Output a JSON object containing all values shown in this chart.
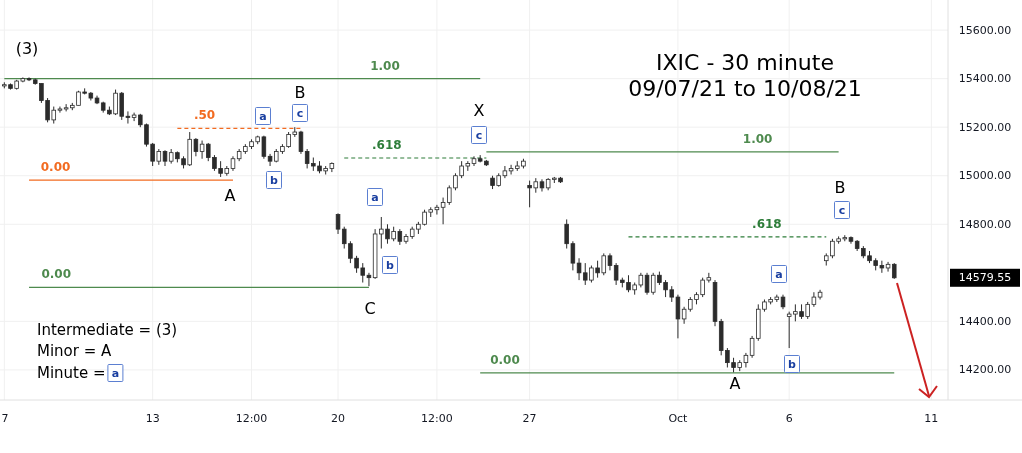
{
  "chart_data": {
    "type": "candlestick",
    "title": "IXIC - 30 minute",
    "subtitle": "09/07/21 to 10/08/21",
    "color": "#2b2b2b",
    "categories": [
      "7",
      null,
      null,
      null,
      null,
      null,
      null,
      null,
      null,
      null,
      null,
      null,
      null,
      null,
      null,
      null,
      null,
      null,
      null,
      null,
      null,
      null,
      null,
      null,
      "13",
      null,
      null,
      null,
      null,
      null,
      null,
      null,
      null,
      null,
      null,
      null,
      null,
      null,
      null,
      null,
      "12:00",
      null,
      null,
      null,
      null,
      null,
      null,
      null,
      null,
      null,
      null,
      null,
      null,
      null,
      "20",
      null,
      null,
      null,
      null,
      null,
      null,
      null,
      null,
      null,
      null,
      null,
      null,
      null,
      null,
      null,
      "12:00",
      null,
      null,
      null,
      null,
      null,
      null,
      null,
      null,
      null,
      null,
      null,
      null,
      null,
      null,
      "27",
      null,
      null,
      null,
      null,
      null,
      null,
      null,
      null,
      null,
      null,
      null,
      null,
      null,
      null,
      null,
      null,
      null,
      null,
      null,
      null,
      null,
      null,
      null,
      "Oct",
      null,
      null,
      null,
      null,
      null,
      null,
      null,
      null,
      null,
      null,
      null,
      null,
      null,
      null,
      null,
      null,
      null,
      "6",
      null,
      null,
      null,
      null,
      null,
      null,
      null,
      null,
      null,
      null,
      null,
      null,
      null,
      null,
      null,
      null,
      null,
      null,
      null,
      null,
      null,
      null,
      "11",
      null,
      null
    ],
    "ohlc": [
      [
        15370,
        15385,
        15360,
        15375
      ],
      [
        15375,
        15380,
        15355,
        15360
      ],
      [
        15360,
        15395,
        15355,
        15390
      ],
      [
        15390,
        15405,
        15385,
        15400
      ],
      [
        15400,
        15405,
        15390,
        15395
      ],
      [
        15395,
        15400,
        15375,
        15380
      ],
      [
        15380,
        15380,
        15300,
        15310
      ],
      [
        15310,
        15320,
        15220,
        15230
      ],
      [
        15230,
        15285,
        15215,
        15270
      ],
      [
        15270,
        15285,
        15260,
        15275
      ],
      [
        15275,
        15295,
        15265,
        15280
      ],
      [
        15280,
        15300,
        15270,
        15290
      ],
      [
        15290,
        15350,
        15290,
        15345
      ],
      [
        15345,
        15360,
        15335,
        15340
      ],
      [
        15340,
        15345,
        15310,
        15320
      ],
      [
        15320,
        15330,
        15295,
        15300
      ],
      [
        15300,
        15305,
        15260,
        15270
      ],
      [
        15270,
        15285,
        15250,
        15255
      ],
      [
        15255,
        15355,
        15250,
        15340
      ],
      [
        15340,
        15345,
        15230,
        15245
      ],
      [
        15245,
        15265,
        15215,
        15240
      ],
      [
        15240,
        15260,
        15225,
        15250
      ],
      [
        15250,
        15255,
        15200,
        15210
      ],
      [
        15210,
        15215,
        15120,
        15130
      ],
      [
        15130,
        15135,
        15040,
        15060
      ],
      [
        15060,
        15110,
        15045,
        15100
      ],
      [
        15100,
        15105,
        15040,
        15060
      ],
      [
        15060,
        15110,
        15050,
        15095
      ],
      [
        15095,
        15100,
        15055,
        15070
      ],
      [
        15070,
        15080,
        15030,
        15045
      ],
      [
        15045,
        15180,
        15040,
        15150
      ],
      [
        15150,
        15155,
        15080,
        15100
      ],
      [
        15100,
        15145,
        15070,
        15130
      ],
      [
        15130,
        15135,
        15060,
        15075
      ],
      [
        15075,
        15085,
        15020,
        15030
      ],
      [
        15030,
        15060,
        14995,
        15010
      ],
      [
        15010,
        15040,
        15000,
        15030
      ],
      [
        15030,
        15080,
        15020,
        15070
      ],
      [
        15070,
        15110,
        15060,
        15100
      ],
      [
        15100,
        15130,
        15090,
        15120
      ],
      [
        15120,
        15150,
        15110,
        15140
      ],
      [
        15140,
        15165,
        15130,
        15160
      ],
      [
        15160,
        15165,
        15070,
        15080
      ],
      [
        15080,
        15090,
        15040,
        15060
      ],
      [
        15060,
        15110,
        15055,
        15100
      ],
      [
        15100,
        15130,
        15090,
        15120
      ],
      [
        15120,
        15180,
        15115,
        15170
      ],
      [
        15170,
        15200,
        15160,
        15180
      ],
      [
        15180,
        15185,
        15090,
        15100
      ],
      [
        15100,
        15110,
        15030,
        15050
      ],
      [
        15050,
        15075,
        15020,
        15040
      ],
      [
        15040,
        15060,
        15010,
        15020
      ],
      [
        15020,
        15040,
        15005,
        15030
      ],
      [
        15030,
        15055,
        15015,
        15050
      ],
      [
        14840,
        14845,
        14760,
        14780
      ],
      [
        14780,
        14790,
        14700,
        14720
      ],
      [
        14720,
        14730,
        14640,
        14660
      ],
      [
        14660,
        14670,
        14600,
        14620
      ],
      [
        14620,
        14640,
        14560,
        14590
      ],
      [
        14590,
        14600,
        14545,
        14580
      ],
      [
        14580,
        14780,
        14575,
        14760
      ],
      [
        14760,
        14830,
        14700,
        14780
      ],
      [
        14780,
        14800,
        14720,
        14740
      ],
      [
        14740,
        14790,
        14730,
        14770
      ],
      [
        14770,
        14780,
        14715,
        14730
      ],
      [
        14730,
        14760,
        14720,
        14750
      ],
      [
        14750,
        14790,
        14740,
        14780
      ],
      [
        14780,
        14810,
        14760,
        14800
      ],
      [
        14800,
        14860,
        14795,
        14850
      ],
      [
        14850,
        14870,
        14830,
        14860
      ],
      [
        14860,
        14880,
        14840,
        14870
      ],
      [
        14870,
        14910,
        14800,
        14890
      ],
      [
        14890,
        14960,
        14880,
        14950
      ],
      [
        14950,
        15010,
        14940,
        15000
      ],
      [
        15000,
        15060,
        14990,
        15040
      ],
      [
        15040,
        15060,
        15020,
        15050
      ],
      [
        15050,
        15080,
        15040,
        15070
      ],
      [
        15070,
        15085,
        15055,
        15060
      ],
      [
        15060,
        15065,
        15040,
        15045
      ],
      [
        14990,
        15000,
        14945,
        14960
      ],
      [
        14960,
        15010,
        14955,
        15000
      ],
      [
        15000,
        15040,
        14990,
        15020
      ],
      [
        15020,
        15045,
        15005,
        15030
      ],
      [
        15030,
        15060,
        15020,
        15040
      ],
      [
        15040,
        15070,
        15030,
        15060
      ],
      [
        14960,
        14980,
        14870,
        14950
      ],
      [
        14950,
        14990,
        14930,
        14975
      ],
      [
        14975,
        14985,
        14935,
        14950
      ],
      [
        14950,
        14990,
        14940,
        14985
      ],
      [
        14985,
        14995,
        14970,
        14990
      ],
      [
        14990,
        14995,
        14970,
        14975
      ],
      [
        14800,
        14820,
        14700,
        14720
      ],
      [
        14720,
        14730,
        14610,
        14640
      ],
      [
        14640,
        14660,
        14570,
        14600
      ],
      [
        14600,
        14640,
        14550,
        14570
      ],
      [
        14570,
        14630,
        14560,
        14620
      ],
      [
        14620,
        14650,
        14580,
        14600
      ],
      [
        14600,
        14680,
        14590,
        14670
      ],
      [
        14670,
        14680,
        14610,
        14630
      ],
      [
        14630,
        14640,
        14550,
        14570
      ],
      [
        14570,
        14580,
        14540,
        14560
      ],
      [
        14560,
        14590,
        14520,
        14530
      ],
      [
        14530,
        14560,
        14510,
        14550
      ],
      [
        14550,
        14600,
        14540,
        14590
      ],
      [
        14590,
        14600,
        14510,
        14520
      ],
      [
        14520,
        14600,
        14510,
        14590
      ],
      [
        14590,
        14605,
        14550,
        14560
      ],
      [
        14560,
        14570,
        14500,
        14530
      ],
      [
        14530,
        14545,
        14480,
        14500
      ],
      [
        14500,
        14510,
        14330,
        14410
      ],
      [
        14410,
        14460,
        14390,
        14450
      ],
      [
        14450,
        14500,
        14440,
        14490
      ],
      [
        14490,
        14520,
        14470,
        14510
      ],
      [
        14510,
        14580,
        14500,
        14570
      ],
      [
        14570,
        14600,
        14560,
        14580
      ],
      [
        14560,
        14570,
        14380,
        14400
      ],
      [
        14400,
        14410,
        14260,
        14280
      ],
      [
        14280,
        14290,
        14210,
        14230
      ],
      [
        14230,
        14250,
        14190,
        14210
      ],
      [
        14210,
        14240,
        14195,
        14230
      ],
      [
        14230,
        14270,
        14210,
        14260
      ],
      [
        14260,
        14340,
        14250,
        14330
      ],
      [
        14330,
        14470,
        14320,
        14450
      ],
      [
        14450,
        14490,
        14440,
        14480
      ],
      [
        14480,
        14500,
        14470,
        14490
      ],
      [
        14490,
        14510,
        14480,
        14500
      ],
      [
        14500,
        14510,
        14450,
        14460
      ],
      [
        14420,
        14440,
        14290,
        14430
      ],
      [
        14430,
        14470,
        14400,
        14440
      ],
      [
        14440,
        14470,
        14410,
        14420
      ],
      [
        14420,
        14480,
        14410,
        14470
      ],
      [
        14470,
        14520,
        14460,
        14500
      ],
      [
        14500,
        14530,
        14490,
        14520
      ],
      [
        14650,
        14680,
        14630,
        14670
      ],
      [
        14670,
        14740,
        14660,
        14730
      ],
      [
        14730,
        14750,
        14720,
        14740
      ],
      [
        14740,
        14755,
        14730,
        14745
      ],
      [
        14745,
        14750,
        14720,
        14730
      ],
      [
        14730,
        14735,
        14690,
        14700
      ],
      [
        14700,
        14710,
        14660,
        14670
      ],
      [
        14670,
        14690,
        14640,
        14650
      ],
      [
        14650,
        14660,
        14610,
        14630
      ],
      [
        14630,
        14650,
        14600,
        14620
      ],
      [
        14620,
        14645,
        14605,
        14635
      ],
      [
        14635,
        14640,
        14575,
        14579.55
      ],
      null,
      null,
      null,
      null,
      null,
      null,
      null,
      null
    ],
    "series": [
      {
        "type": "line",
        "name": "1.00",
        "color": "#4e8a4e",
        "line_style": "solid",
        "values": [
          15400,
          15400,
          15400,
          15400,
          15400,
          15400,
          15400,
          15400,
          15400,
          15400,
          15400,
          15400,
          15400,
          15400,
          15400,
          15400,
          15400,
          15400,
          15400,
          15400,
          15400,
          15400,
          15400,
          15400,
          15400,
          15400,
          15400,
          15400,
          15400,
          15400,
          15400,
          15400,
          15400,
          15400,
          15400,
          15400,
          15400,
          15400,
          15400,
          15400,
          15400,
          15400,
          15400,
          15400,
          15400,
          15400,
          15400,
          15400,
          15400,
          15400,
          15400,
          15400,
          15400,
          15400,
          15400,
          15400,
          15400,
          15400,
          15400,
          15400,
          15400,
          15400,
          15400,
          15400,
          15400,
          15400,
          15400,
          15400,
          15400,
          15400,
          15400,
          15400,
          15400,
          15400,
          15400,
          15400,
          15400,
          15400,
          null,
          null,
          null,
          null,
          null,
          null,
          null,
          null,
          null,
          null,
          null,
          null,
          null,
          null,
          null,
          null,
          null,
          null,
          null,
          null,
          null,
          null,
          null,
          null,
          null,
          null,
          null,
          null,
          null,
          null,
          null,
          null,
          null,
          null,
          null,
          null,
          null,
          null,
          null,
          null,
          null,
          null,
          null,
          null,
          null,
          null,
          null,
          null,
          null,
          null,
          null,
          null,
          null,
          null,
          null,
          null,
          null,
          null,
          null,
          null,
          null,
          null,
          null,
          null,
          null,
          null,
          null,
          null,
          null,
          null,
          null,
          null,
          null,
          null,
          null
        ]
      },
      {
        "type": "line",
        "name": ".50",
        "color": "#f26b21",
        "line_style": "dashed",
        "values": [
          null,
          null,
          null,
          null,
          null,
          null,
          null,
          null,
          null,
          null,
          null,
          null,
          null,
          null,
          null,
          null,
          null,
          null,
          null,
          null,
          null,
          null,
          null,
          null,
          null,
          null,
          null,
          null,
          15195,
          15195,
          15195,
          15195,
          15195,
          15195,
          15195,
          15195,
          15195,
          15195,
          15195,
          15195,
          15195,
          15195,
          15195,
          15195,
          15195,
          15195,
          15195,
          15195,
          15195,
          null,
          null,
          null,
          null,
          null,
          null,
          null,
          null,
          null,
          null,
          null,
          null,
          null,
          null,
          null,
          null,
          null,
          null,
          null,
          null,
          null,
          null,
          null,
          null,
          null,
          null,
          null,
          null,
          null,
          null,
          null,
          null,
          null,
          null,
          null,
          null,
          null,
          null,
          null,
          null,
          null,
          null,
          null,
          null,
          null,
          null,
          null,
          null,
          null,
          null,
          null,
          null,
          null,
          null,
          null,
          null,
          null,
          null,
          null,
          null,
          null,
          null,
          null,
          null,
          null,
          null,
          null,
          null,
          null,
          null,
          null,
          null,
          null,
          null,
          null,
          null,
          null,
          null,
          null,
          null,
          null,
          null,
          null,
          null,
          null,
          null,
          null,
          null,
          null,
          null,
          null,
          null,
          null,
          null,
          null,
          null,
          null,
          null,
          null,
          null,
          null,
          null,
          null,
          null
        ]
      },
      {
        "type": "line",
        "name": "0.00",
        "color": "#f26b21",
        "line_style": "solid",
        "values": [
          null,
          null,
          null,
          null,
          14982,
          14982,
          14982,
          14982,
          14982,
          14982,
          14982,
          14982,
          14982,
          14982,
          14982,
          14982,
          14982,
          14982,
          14982,
          14982,
          14982,
          14982,
          14982,
          14982,
          14982,
          14982,
          14982,
          14982,
          14982,
          14982,
          14982,
          14982,
          14982,
          14982,
          14982,
          14982,
          14982,
          14982,
          null,
          null,
          null,
          null,
          null,
          null,
          null,
          null,
          null,
          null,
          null,
          null,
          null,
          null,
          null,
          null,
          null,
          null,
          null,
          null,
          null,
          null,
          null,
          null,
          null,
          null,
          null,
          null,
          null,
          null,
          null,
          null,
          null,
          null,
          null,
          null,
          null,
          null,
          null,
          null,
          null,
          null,
          null,
          null,
          null,
          null,
          null,
          null,
          null,
          null,
          null,
          null,
          null,
          null,
          null,
          null,
          null,
          null,
          null,
          null,
          null,
          null,
          null,
          null,
          null,
          null,
          null,
          null,
          null,
          null,
          null,
          null,
          null,
          null,
          null,
          null,
          null,
          null,
          null,
          null,
          null,
          null,
          null,
          null,
          null,
          null,
          null,
          null,
          null,
          null,
          null,
          null,
          null,
          null,
          null,
          null,
          null,
          null,
          null,
          null,
          null,
          null,
          null,
          null,
          null,
          null,
          null,
          null,
          null,
          null,
          null,
          null,
          null,
          null,
          null
        ]
      },
      {
        "type": "line",
        "name": ".618",
        "color": "#2e7d3a",
        "line_style": "dashed",
        "values": [
          null,
          null,
          null,
          null,
          null,
          null,
          null,
          null,
          null,
          null,
          null,
          null,
          null,
          null,
          null,
          null,
          null,
          null,
          null,
          null,
          null,
          null,
          null,
          null,
          null,
          null,
          null,
          null,
          null,
          null,
          null,
          null,
          null,
          null,
          null,
          null,
          null,
          null,
          null,
          null,
          null,
          null,
          null,
          null,
          null,
          null,
          null,
          null,
          null,
          null,
          null,
          null,
          null,
          null,
          null,
          15073,
          15073,
          15073,
          15073,
          15073,
          15073,
          15073,
          15073,
          15073,
          15073,
          15073,
          15073,
          15073,
          15073,
          15073,
          15073,
          15073,
          15073,
          15073,
          15073,
          15073,
          15073,
          15073,
          15073,
          null,
          null,
          null,
          null,
          null,
          null,
          null,
          null,
          null,
          null,
          null,
          null,
          null,
          null,
          null,
          null,
          null,
          null,
          null,
          null,
          null,
          null,
          null,
          null,
          null,
          null,
          null,
          null,
          null,
          null,
          null,
          null,
          null,
          null,
          null,
          null,
          null,
          null,
          null,
          null,
          null,
          null,
          null,
          null,
          null,
          null,
          null,
          null,
          null,
          null,
          null,
          null,
          null,
          null,
          null,
          null,
          null,
          null,
          null,
          null,
          null,
          null,
          null,
          null,
          null,
          null,
          null,
          null,
          null,
          null,
          null,
          null,
          null,
          null
        ]
      },
      {
        "type": "line",
        "name": "1.00",
        "color": "#4e8a4e",
        "line_style": "solid",
        "values": [
          null,
          null,
          null,
          null,
          null,
          null,
          null,
          null,
          null,
          null,
          null,
          null,
          null,
          null,
          null,
          null,
          null,
          null,
          null,
          null,
          null,
          null,
          null,
          null,
          null,
          null,
          null,
          null,
          null,
          null,
          null,
          null,
          null,
          null,
          null,
          null,
          null,
          null,
          null,
          null,
          null,
          null,
          null,
          null,
          null,
          null,
          null,
          null,
          null,
          null,
          null,
          null,
          null,
          null,
          null,
          null,
          null,
          null,
          null,
          null,
          null,
          null,
          null,
          null,
          null,
          null,
          null,
          null,
          null,
          null,
          null,
          null,
          null,
          null,
          null,
          null,
          null,
          null,
          15098,
          15098,
          15098,
          15098,
          15098,
          15098,
          15098,
          15098,
          15098,
          15098,
          15098,
          15098,
          15098,
          15098,
          15098,
          15098,
          15098,
          15098,
          15098,
          15098,
          15098,
          15098,
          15098,
          15098,
          15098,
          15098,
          15098,
          15098,
          15098,
          15098,
          15098,
          15098,
          15098,
          15098,
          15098,
          15098,
          15098,
          15098,
          15098,
          15098,
          15098,
          15098,
          15098,
          15098,
          15098,
          15098,
          15098,
          15098,
          15098,
          15098,
          15098,
          15098,
          15098,
          15098,
          15098,
          15098,
          15098,
          15098,
          null,
          null,
          null,
          null,
          null,
          null,
          null,
          null,
          null,
          null,
          null,
          null,
          null,
          null,
          null,
          null,
          null
        ]
      },
      {
        "type": "line",
        "name": "0.00",
        "color": "#4e8a4e",
        "line_style": "solid",
        "values": [
          null,
          null,
          null,
          null,
          14540,
          14540,
          14540,
          14540,
          14540,
          14540,
          14540,
          14540,
          14540,
          14540,
          14540,
          14540,
          14540,
          14540,
          14540,
          14540,
          14540,
          14540,
          14540,
          14540,
          14540,
          14540,
          14540,
          14540,
          14540,
          14540,
          14540,
          14540,
          14540,
          14540,
          14540,
          14540,
          14540,
          14540,
          14540,
          14540,
          14540,
          14540,
          14540,
          14540,
          14540,
          14540,
          14540,
          14540,
          14540,
          14540,
          14540,
          14540,
          14540,
          14540,
          14540,
          14540,
          14540,
          14540,
          14540,
          14540,
          null,
          null,
          null,
          null,
          null,
          null,
          null,
          null,
          null,
          null,
          null,
          null,
          null,
          null,
          null,
          null,
          null,
          null,
          null,
          null,
          null,
          null,
          null,
          null,
          null,
          null,
          null,
          null,
          null,
          null,
          null,
          null,
          null,
          null,
          null,
          null,
          null,
          null,
          null,
          null,
          null,
          null,
          null,
          null,
          null,
          null,
          null,
          null,
          null,
          null,
          null,
          null,
          null,
          null,
          null,
          null,
          null,
          null,
          null,
          null,
          null,
          null,
          null,
          null,
          null,
          null,
          null,
          null,
          null,
          null,
          null,
          null,
          null,
          null,
          null,
          null,
          null,
          null,
          null,
          null,
          null,
          null,
          null,
          null,
          null,
          null,
          null,
          null,
          null,
          null,
          null,
          null,
          null
        ]
      },
      {
        "type": "line",
        "name": ".618",
        "color": "#2e7d3a",
        "line_style": "dashed",
        "values": [
          null,
          null,
          null,
          null,
          null,
          null,
          null,
          null,
          null,
          null,
          null,
          null,
          null,
          null,
          null,
          null,
          null,
          null,
          null,
          null,
          null,
          null,
          null,
          null,
          null,
          null,
          null,
          null,
          null,
          null,
          null,
          null,
          null,
          null,
          null,
          null,
          null,
          null,
          null,
          null,
          null,
          null,
          null,
          null,
          null,
          null,
          null,
          null,
          null,
          null,
          null,
          null,
          null,
          null,
          null,
          null,
          null,
          null,
          null,
          null,
          null,
          null,
          null,
          null,
          null,
          null,
          null,
          null,
          null,
          null,
          null,
          null,
          null,
          null,
          null,
          null,
          null,
          null,
          null,
          null,
          null,
          null,
          null,
          null,
          null,
          null,
          null,
          null,
          null,
          null,
          null,
          null,
          null,
          null,
          null,
          null,
          null,
          null,
          null,
          null,
          null,
          14748,
          14748,
          14748,
          14748,
          14748,
          14748,
          14748,
          14748,
          14748,
          14748,
          14748,
          14748,
          14748,
          14748,
          14748,
          14748,
          14748,
          14748,
          14748,
          14748,
          14748,
          14748,
          14748,
          14748,
          14748,
          14748,
          14748,
          14748,
          14748,
          14748,
          14748,
          14748,
          14748,
          null,
          null,
          null,
          null,
          null,
          null,
          null,
          null,
          null,
          null,
          null,
          null,
          null,
          null,
          null,
          null,
          null,
          null,
          null
        ]
      },
      {
        "type": "line",
        "name": "0.00",
        "color": "#4e8a4e",
        "line_style": "solid",
        "values": [
          null,
          null,
          null,
          null,
          null,
          null,
          null,
          null,
          null,
          null,
          null,
          null,
          null,
          null,
          null,
          null,
          null,
          null,
          null,
          null,
          null,
          null,
          null,
          null,
          null,
          null,
          null,
          null,
          null,
          null,
          null,
          null,
          null,
          null,
          null,
          null,
          null,
          null,
          null,
          null,
          null,
          null,
          null,
          null,
          null,
          null,
          null,
          null,
          null,
          null,
          null,
          null,
          null,
          null,
          null,
          null,
          null,
          null,
          null,
          null,
          null,
          null,
          null,
          null,
          null,
          null,
          null,
          null,
          null,
          null,
          null,
          null,
          null,
          null,
          null,
          null,
          null,
          14188,
          14188,
          14188,
          14188,
          14188,
          14188,
          14188,
          14188,
          14188,
          14188,
          14188,
          14188,
          14188,
          14188,
          14188,
          14188,
          14188,
          14188,
          14188,
          14188,
          14188,
          14188,
          14188,
          14188,
          14188,
          14188,
          14188,
          14188,
          14188,
          14188,
          14188,
          14188,
          14188,
          14188,
          14188,
          14188,
          14188,
          14188,
          14188,
          14188,
          14188,
          14188,
          14188,
          14188,
          14188,
          14188,
          14188,
          14188,
          14188,
          14188,
          14188,
          14188,
          14188,
          14188,
          14188,
          14188,
          14188,
          14188,
          14188,
          14188,
          14188,
          14188,
          14188,
          14188,
          14188,
          14188,
          14188,
          14188,
          null,
          null,
          null,
          null,
          null,
          null,
          null,
          null
        ]
      }
    ],
    "ylim": [
      14076,
      15724
    ],
    "yticks": [
      {
        "value": 14200,
        "label": "14200.00"
      },
      {
        "value": 14400,
        "label": "14400.00"
      },
      {
        "value": 14800,
        "label": "14800.00"
      },
      {
        "value": 15000,
        "label": "15000.00"
      },
      {
        "value": 15200,
        "label": "15200.00"
      },
      {
        "value": 15400,
        "label": "15400.00"
      },
      {
        "value": 15600,
        "label": "15600.00"
      }
    ],
    "grid": true,
    "annotations": [
      "(3)",
      "A",
      "B",
      "a",
      "b",
      "c",
      "C",
      "a",
      "b",
      "X",
      "c",
      "A",
      "a",
      "b",
      "B",
      "c",
      "Intermediate = (3)",
      "Minor = A",
      "Minute = a",
      "14579.55"
    ]
  }
}
